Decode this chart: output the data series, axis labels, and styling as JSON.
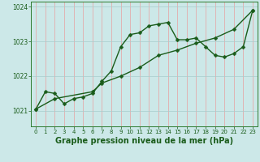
{
  "title": "Graphe pression niveau de la mer (hPa)",
  "bg_color": "#cce8e8",
  "vgrid_color": "#e8a0a0",
  "hgrid_color": "#a8cccc",
  "line_color": "#1a5c1a",
  "spine_color": "#2d7a2d",
  "x_ticks": [
    0,
    1,
    2,
    3,
    4,
    5,
    6,
    7,
    8,
    9,
    10,
    11,
    12,
    13,
    14,
    15,
    16,
    17,
    18,
    19,
    20,
    21,
    22,
    23
  ],
  "y_ticks": [
    1021,
    1022,
    1023,
    1024
  ],
  "ylim": [
    1020.55,
    1024.15
  ],
  "xlim": [
    -0.5,
    23.5
  ],
  "series1_x": [
    0,
    1,
    2,
    3,
    4,
    5,
    6,
    7,
    8,
    9,
    10,
    11,
    12,
    13,
    14,
    15,
    16,
    17,
    18,
    19,
    20,
    21,
    22,
    23
  ],
  "series1_y": [
    1021.05,
    1021.55,
    1021.5,
    1021.2,
    1021.35,
    1021.4,
    1021.5,
    1021.85,
    1022.15,
    1022.85,
    1023.2,
    1023.25,
    1023.45,
    1023.5,
    1023.55,
    1023.05,
    1023.05,
    1023.1,
    1022.85,
    1022.6,
    1022.55,
    1022.65,
    1022.85,
    1023.9
  ],
  "series2_x": [
    0,
    2,
    6,
    7,
    9,
    11,
    13,
    15,
    17,
    19,
    21,
    23
  ],
  "series2_y": [
    1021.05,
    1021.35,
    1021.55,
    1021.8,
    1022.0,
    1022.25,
    1022.6,
    1022.75,
    1022.95,
    1023.1,
    1023.35,
    1023.9
  ],
  "marker": "D",
  "marker_size": 2.5,
  "linewidth": 1.0,
  "title_fontsize": 7.0,
  "tick_fontsize": 5.0,
  "ylabel_fontsize": 5.5
}
